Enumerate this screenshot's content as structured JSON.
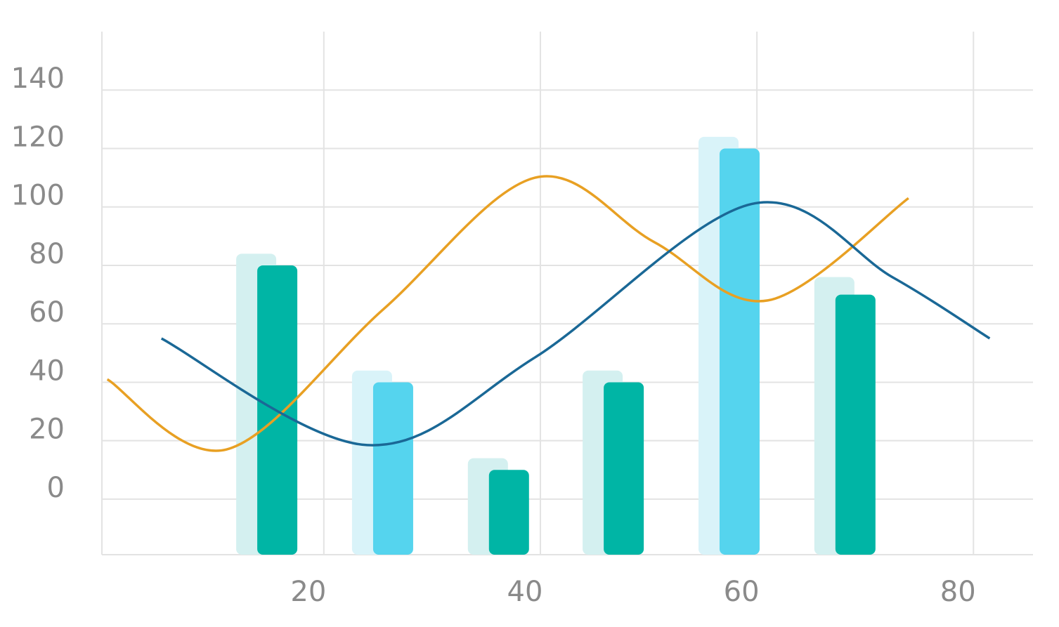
{
  "chart_data": {
    "type": "combo",
    "x": [
      15.7,
      26.4,
      37.1,
      47.7,
      58.4,
      69.1
    ],
    "series": [
      {
        "type": "bar",
        "values": [
          84,
          44,
          14,
          44,
          124,
          76
        ],
        "colors": [
          "#d4f0f0",
          "#d9f3f9",
          "#d4f0f0",
          "#d4f0f0",
          "#d9f3f9",
          "#d4f0f0"
        ]
      },
      {
        "type": "bar",
        "values": [
          80,
          40,
          10,
          40,
          120,
          70
        ],
        "colors": [
          "#00b5a5",
          "#55d4ee",
          "#00b5a5",
          "#00b5a5",
          "#55d4ee",
          "#00b5a5"
        ]
      },
      {
        "type": "line",
        "color": "#e8a023",
        "x": [
          0,
          11,
          25.5,
          39.5,
          50.5,
          61,
          74
        ],
        "values": [
          41,
          17,
          65,
          110,
          88,
          68,
          103
        ]
      },
      {
        "type": "line",
        "color": "#1a6896",
        "x": [
          5,
          24,
          39.5,
          59.5,
          72.5,
          81.5
        ],
        "values": [
          55,
          18.5,
          48.5,
          101,
          76,
          55
        ]
      }
    ],
    "xlim": [
      -0.5,
      85.5
    ],
    "xticks": [
      20,
      40,
      60,
      80
    ],
    "ylim": [
      -19,
      160
    ],
    "yticks": [
      0,
      20,
      40,
      60,
      80,
      100,
      120,
      140
    ],
    "grid": true
  }
}
